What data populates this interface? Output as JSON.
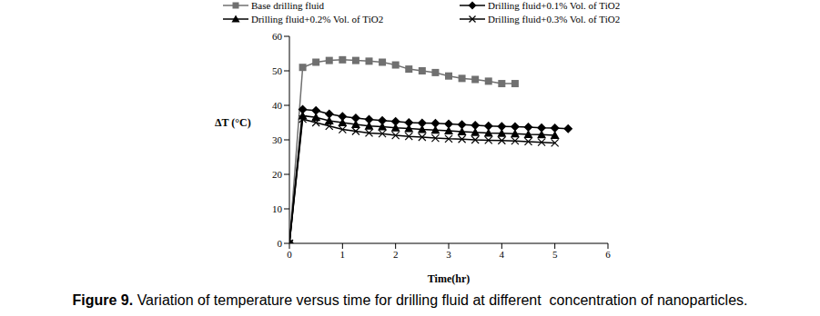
{
  "chart_data": {
    "type": "line",
    "title": "Figure 9. Variation of temperature versus time for drilling fluid at different  concentration of nanoparticles.",
    "x_label": "Time(hr)",
    "y_label": "ΔT (°C)",
    "x": [
      0,
      0.25,
      0.5,
      0.75,
      1,
      1.25,
      1.5,
      1.75,
      2,
      2.25,
      2.5,
      2.75,
      3,
      3.25,
      3.5,
      3.75,
      4,
      4.25,
      4.5,
      4.75,
      5,
      5.25
    ],
    "series": [
      {
        "name": "Base drilling fluid",
        "color": "#707070",
        "marker": "square",
        "values": [
          0,
          51,
          52.5,
          53,
          53.2,
          53,
          52.8,
          52.5,
          51.7,
          50.5,
          50,
          49.5,
          48.5,
          47.8,
          47.5,
          47,
          46.3,
          46.3,
          null,
          null,
          null,
          null
        ]
      },
      {
        "name": "Drilling fluid+0.1% Vol. of TiO2",
        "color": "#000000",
        "marker": "diamond",
        "values": [
          0,
          38.8,
          38.5,
          37.5,
          36.8,
          36.3,
          35.9,
          35.6,
          35.3,
          35,
          34.9,
          34.8,
          34.6,
          34.4,
          34.2,
          34,
          33.9,
          33.8,
          33.7,
          33.5,
          33.4,
          33.2
        ]
      },
      {
        "name": "Drilling fluid+0.2% Vol. of TiO2",
        "color": "#000000",
        "marker": "triangle",
        "values": [
          0,
          37,
          36.5,
          35.5,
          35,
          34.5,
          34,
          33.8,
          33.5,
          33.3,
          33,
          32.8,
          32.6,
          32.4,
          32.2,
          32,
          31.9,
          31.8,
          31.6,
          31.5,
          31.3,
          null
        ]
      },
      {
        "name": "Drilling fluid+0.3% Vol. of TiO2",
        "color": "#000000",
        "marker": "x",
        "values": [
          0,
          36,
          35,
          34,
          33,
          32.5,
          32,
          31.8,
          31.3,
          31,
          30.8,
          30.5,
          30.3,
          30.2,
          30,
          29.9,
          29.8,
          29.7,
          29.5,
          29.3,
          29.1,
          null
        ]
      }
    ],
    "xlim": [
      0,
      6
    ],
    "xticks": [
      0,
      1,
      2,
      3,
      4,
      5,
      6
    ],
    "ylim": [
      0,
      60
    ],
    "yticks": [
      0,
      10,
      20,
      30,
      40,
      50,
      60
    ],
    "grid": false,
    "legend": "top"
  }
}
